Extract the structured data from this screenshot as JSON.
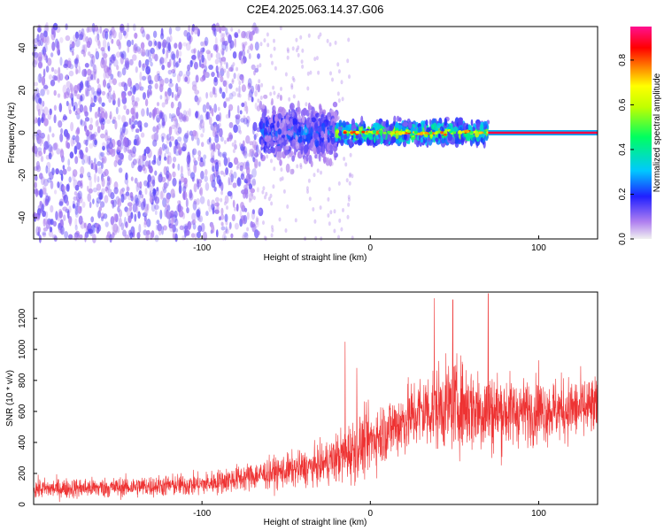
{
  "title": "C2E4.2025.063.14.37.G06",
  "colors": {
    "snr_trace": "#ee3333",
    "spectrogram_background": "#ffffff",
    "colormap": [
      "#f0f0f0",
      "#d8b8f8",
      "#a060f0",
      "#7a20e8",
      "#2020ff",
      "#00c8ff",
      "#00ff80",
      "#a0ff00",
      "#ffff00",
      "#ff8000",
      "#ff0000",
      "#ff00a0"
    ]
  },
  "chart_data": [
    {
      "type": "heatmap",
      "name": "spectrogram",
      "xlabel": "Height of straight line (km)",
      "ylabel": "Frequency (Hz)",
      "xlim": [
        -200,
        135
      ],
      "ylim": [
        -50,
        50
      ],
      "xticks": [
        -100,
        0,
        100
      ],
      "yticks": [
        -40,
        -20,
        0,
        20,
        40
      ],
      "regions": [
        {
          "x": [
            -200,
            -65
          ],
          "freq_spread": [
            -50,
            50
          ],
          "amplitude": [
            0.05,
            0.15
          ]
        },
        {
          "x": [
            -65,
            -20
          ],
          "freq_spread": [
            -20,
            20
          ],
          "amplitude": [
            0.05,
            0.3
          ]
        },
        {
          "x": [
            -20,
            70
          ],
          "freq_spread": [
            -8,
            8
          ],
          "amplitude": [
            0.1,
            0.7
          ]
        },
        {
          "x": [
            70,
            135
          ],
          "freq_spread": [
            -1,
            1
          ],
          "amplitude": [
            0.8,
            0.9
          ]
        }
      ],
      "colorbar": {
        "label": "Normalized spectral amplitude",
        "range": [
          0,
          0.95
        ],
        "ticks": [
          "0.0",
          "0.2",
          "0.4",
          "0.6",
          "0.8"
        ]
      }
    },
    {
      "type": "line",
      "name": "snr",
      "xlabel": "Height of straight line (km)",
      "ylabel": "SNR (10 * v/v)",
      "xlim": [
        -200,
        135
      ],
      "ylim": [
        0,
        1370
      ],
      "xticks": [
        -100,
        0,
        100
      ],
      "yticks": [
        0,
        200,
        400,
        600,
        800,
        1000,
        1200
      ],
      "envelope": [
        {
          "x": -200,
          "mean": 100,
          "spread": 80
        },
        {
          "x": -150,
          "mean": 110,
          "spread": 80
        },
        {
          "x": -100,
          "mean": 130,
          "spread": 90
        },
        {
          "x": -60,
          "mean": 200,
          "spread": 120
        },
        {
          "x": -30,
          "mean": 250,
          "spread": 150
        },
        {
          "x": -10,
          "mean": 350,
          "spread": 250
        },
        {
          "x": 10,
          "mean": 480,
          "spread": 250
        },
        {
          "x": 30,
          "mean": 600,
          "spread": 300
        },
        {
          "x": 50,
          "mean": 650,
          "spread": 350
        },
        {
          "x": 70,
          "mean": 600,
          "spread": 350
        },
        {
          "x": 90,
          "mean": 600,
          "spread": 250
        },
        {
          "x": 135,
          "mean": 620,
          "spread": 250
        }
      ],
      "peaks": [
        {
          "x": 70,
          "y": 1360
        },
        {
          "x": 49,
          "y": 1320
        },
        {
          "x": 38,
          "y": 1330
        },
        {
          "x": -15,
          "y": 1050
        },
        {
          "x": -8,
          "y": 880
        },
        {
          "x": 100,
          "y": 930
        }
      ]
    }
  ]
}
